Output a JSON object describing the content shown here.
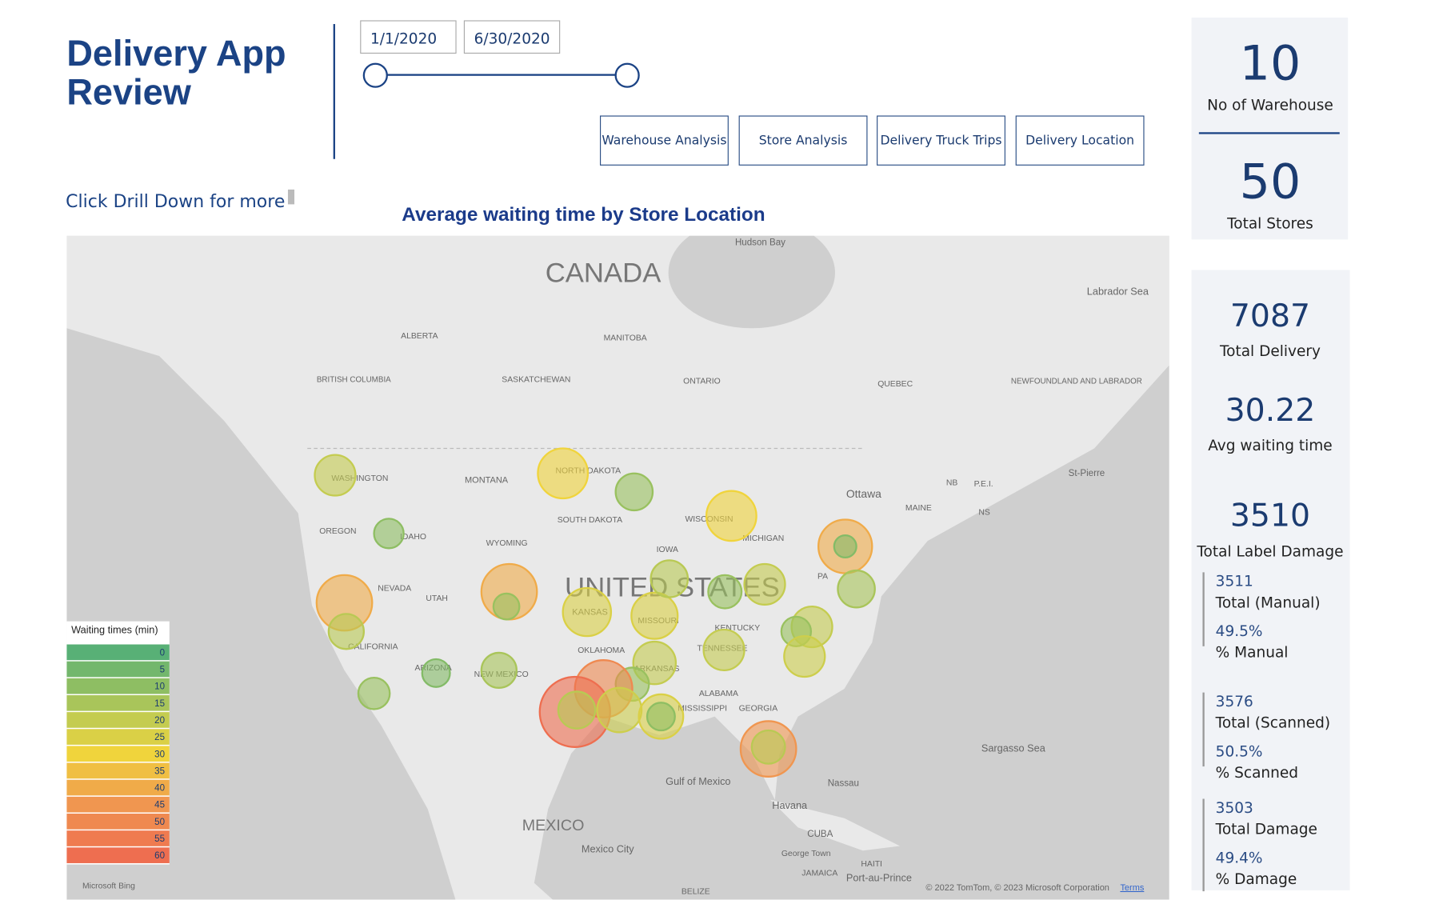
{
  "header": {
    "title_line1": "Delivery App",
    "title_line2": "Review",
    "start_date": "1/1/2020",
    "end_date": "6/30/2020",
    "drill_hint": "Click Drill Down for more"
  },
  "nav_buttons": [
    "Warehouse Analysis",
    "Store Analysis",
    "Delivery Truck Trips",
    "Delivery Location"
  ],
  "map": {
    "title": "Average waiting time by Store Location",
    "labels": [
      "CANADA",
      "Hudson Bay",
      "Labrador Sea",
      "ALBERTA",
      "MANITOBA",
      "BRITISH COLUMBIA",
      "SASKATCHEWAN",
      "ONTARIO",
      "QUEBEC",
      "NEWFOUNDLAND AND LABRADOR",
      "WASHINGTON",
      "MONTANA",
      "NORTH DAKOTA",
      "OREGON",
      "IDAHO",
      "SOUTH DAKOTA",
      "WISCONSIN",
      "WYOMING",
      "IOWA",
      "MICHIGAN",
      "UNITED STATES",
      "NEVADA",
      "UTAH",
      "KANSAS",
      "MISSOURI",
      "CALIFORNIA",
      "ARIZONA",
      "NEW MEXICO",
      "OKLAHOMA",
      "ARKANSAS",
      "TENNESSEE",
      "KENTUCKY",
      "ALABAMA",
      "GEORGIA",
      "MISSISSIPPI",
      "Ottawa",
      "MAINE",
      "NB",
      "P.E.I.",
      "NS",
      "St-Pierre",
      "PA",
      "Gulf of Mexico",
      "Havana",
      "CUBA",
      "Nassau",
      "Sargasso Sea",
      "MEXICO",
      "Mexico City",
      "George Town",
      "JAMAICA",
      "HAITI",
      "Port-au-Prince",
      "BELIZE",
      "Microsoft Bing",
      "© 2022 TomTom, © 2023 Microsoft Corporation",
      "Terms"
    ],
    "legend": {
      "title": "Waiting times (min)",
      "values": [
        0,
        5,
        10,
        15,
        20,
        25,
        30,
        35,
        40,
        45,
        50,
        55,
        60
      ]
    },
    "bubbles": [
      20,
      10,
      30,
      12,
      30,
      40,
      18,
      40,
      12,
      25,
      25,
      18,
      12,
      20,
      40,
      8,
      15,
      20,
      12,
      22,
      20,
      20,
      12,
      50,
      60,
      18,
      22,
      25,
      10,
      45,
      18,
      15,
      8,
      12
    ]
  },
  "kpis": [
    {
      "value": "10",
      "label": "No of Warehouse"
    },
    {
      "value": "50",
      "label": "Total Stores"
    },
    {
      "value": "7087",
      "label": "Total Delivery"
    },
    {
      "value": "30.22",
      "label": "Avg waiting time"
    },
    {
      "value": "3510",
      "label": "Total Label Damage"
    }
  ],
  "details": [
    {
      "value": "3511",
      "label": "Total (Manual)",
      "pct": "49.5%",
      "pct_label": "% Manual"
    },
    {
      "value": "3576",
      "label": "Total (Scanned)",
      "pct": "50.5%",
      "pct_label": "% Scanned"
    },
    {
      "value": "3503",
      "label": "Total Damage",
      "pct": "49.4%",
      "pct_label": "% Damage"
    }
  ]
}
